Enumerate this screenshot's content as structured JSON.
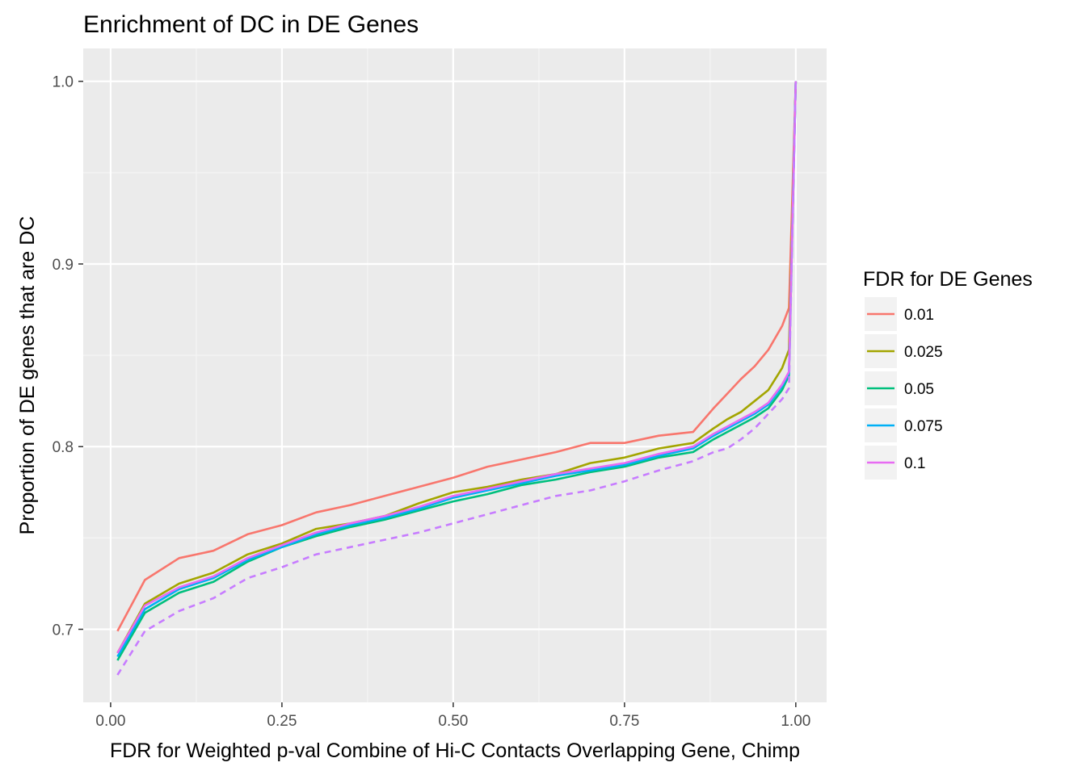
{
  "chart_data": {
    "type": "line",
    "title": "Enrichment of DC in DE Genes",
    "xlabel": "FDR for Weighted p-val Combine of Hi-C Contacts Overlapping Gene, Chimp",
    "ylabel": "Proportion of DE genes that are DC",
    "xlim": [
      -0.04,
      1.045
    ],
    "ylim": [
      0.66,
      1.018
    ],
    "x_ticks": [
      0.0,
      0.25,
      0.5,
      0.75,
      1.0
    ],
    "x_tick_labels": [
      "0.00",
      "0.25",
      "0.50",
      "0.75",
      "1.00"
    ],
    "y_ticks": [
      0.7,
      0.8,
      0.9,
      1.0
    ],
    "y_tick_labels": [
      "0.7",
      "0.8",
      "0.9",
      "1.0"
    ],
    "grid": true,
    "legend": {
      "title": "FDR for DE Genes",
      "position": "right"
    },
    "x": [
      0.01,
      0.05,
      0.1,
      0.15,
      0.2,
      0.25,
      0.3,
      0.35,
      0.4,
      0.45,
      0.5,
      0.55,
      0.6,
      0.65,
      0.7,
      0.75,
      0.8,
      0.85,
      0.88,
      0.9,
      0.92,
      0.94,
      0.96,
      0.98,
      0.99,
      1.0
    ],
    "series": [
      {
        "name": "0.01",
        "color": "#F8766D",
        "dash": false,
        "values": [
          0.699,
          0.727,
          0.739,
          0.743,
          0.752,
          0.757,
          0.764,
          0.768,
          0.773,
          0.778,
          0.783,
          0.789,
          0.793,
          0.797,
          0.802,
          0.802,
          0.806,
          0.808,
          0.821,
          0.829,
          0.837,
          0.844,
          0.853,
          0.866,
          0.876,
          1.0
        ]
      },
      {
        "name": "0.025",
        "color": "#A3A500",
        "dash": false,
        "values": [
          0.687,
          0.714,
          0.725,
          0.731,
          0.741,
          0.747,
          0.755,
          0.758,
          0.762,
          0.769,
          0.775,
          0.778,
          0.782,
          0.785,
          0.791,
          0.794,
          0.799,
          0.802,
          0.81,
          0.815,
          0.819,
          0.825,
          0.831,
          0.843,
          0.853,
          1.0
        ]
      },
      {
        "name": "0.05",
        "color": "#00BF7D",
        "dash": false,
        "values": [
          0.683,
          0.709,
          0.72,
          0.726,
          0.737,
          0.745,
          0.751,
          0.756,
          0.76,
          0.765,
          0.77,
          0.774,
          0.779,
          0.782,
          0.786,
          0.789,
          0.794,
          0.797,
          0.804,
          0.808,
          0.812,
          0.816,
          0.821,
          0.831,
          0.839,
          1.0
        ]
      },
      {
        "name": "0.075",
        "color": "#00B0F6",
        "dash": false,
        "values": [
          0.685,
          0.711,
          0.722,
          0.728,
          0.738,
          0.745,
          0.752,
          0.757,
          0.761,
          0.766,
          0.772,
          0.776,
          0.78,
          0.784,
          0.787,
          0.79,
          0.795,
          0.799,
          0.806,
          0.81,
          0.814,
          0.818,
          0.823,
          0.833,
          0.84,
          1.0
        ]
      },
      {
        "name": "0.1",
        "color": "#E76BF3",
        "dash": false,
        "values": [
          0.687,
          0.713,
          0.723,
          0.729,
          0.739,
          0.746,
          0.753,
          0.758,
          0.762,
          0.767,
          0.773,
          0.777,
          0.781,
          0.785,
          0.788,
          0.791,
          0.796,
          0.8,
          0.807,
          0.811,
          0.815,
          0.819,
          0.824,
          0.834,
          0.841,
          1.0
        ]
      },
      {
        "name": "",
        "color": "#C77CFF",
        "dash": true,
        "values": [
          0.675,
          0.699,
          0.71,
          0.717,
          0.728,
          0.734,
          0.741,
          0.745,
          0.749,
          0.753,
          0.758,
          0.763,
          0.768,
          0.773,
          0.776,
          0.781,
          0.787,
          0.792,
          0.797,
          0.799,
          0.804,
          0.81,
          0.818,
          0.826,
          0.832,
          1.0
        ]
      }
    ]
  }
}
